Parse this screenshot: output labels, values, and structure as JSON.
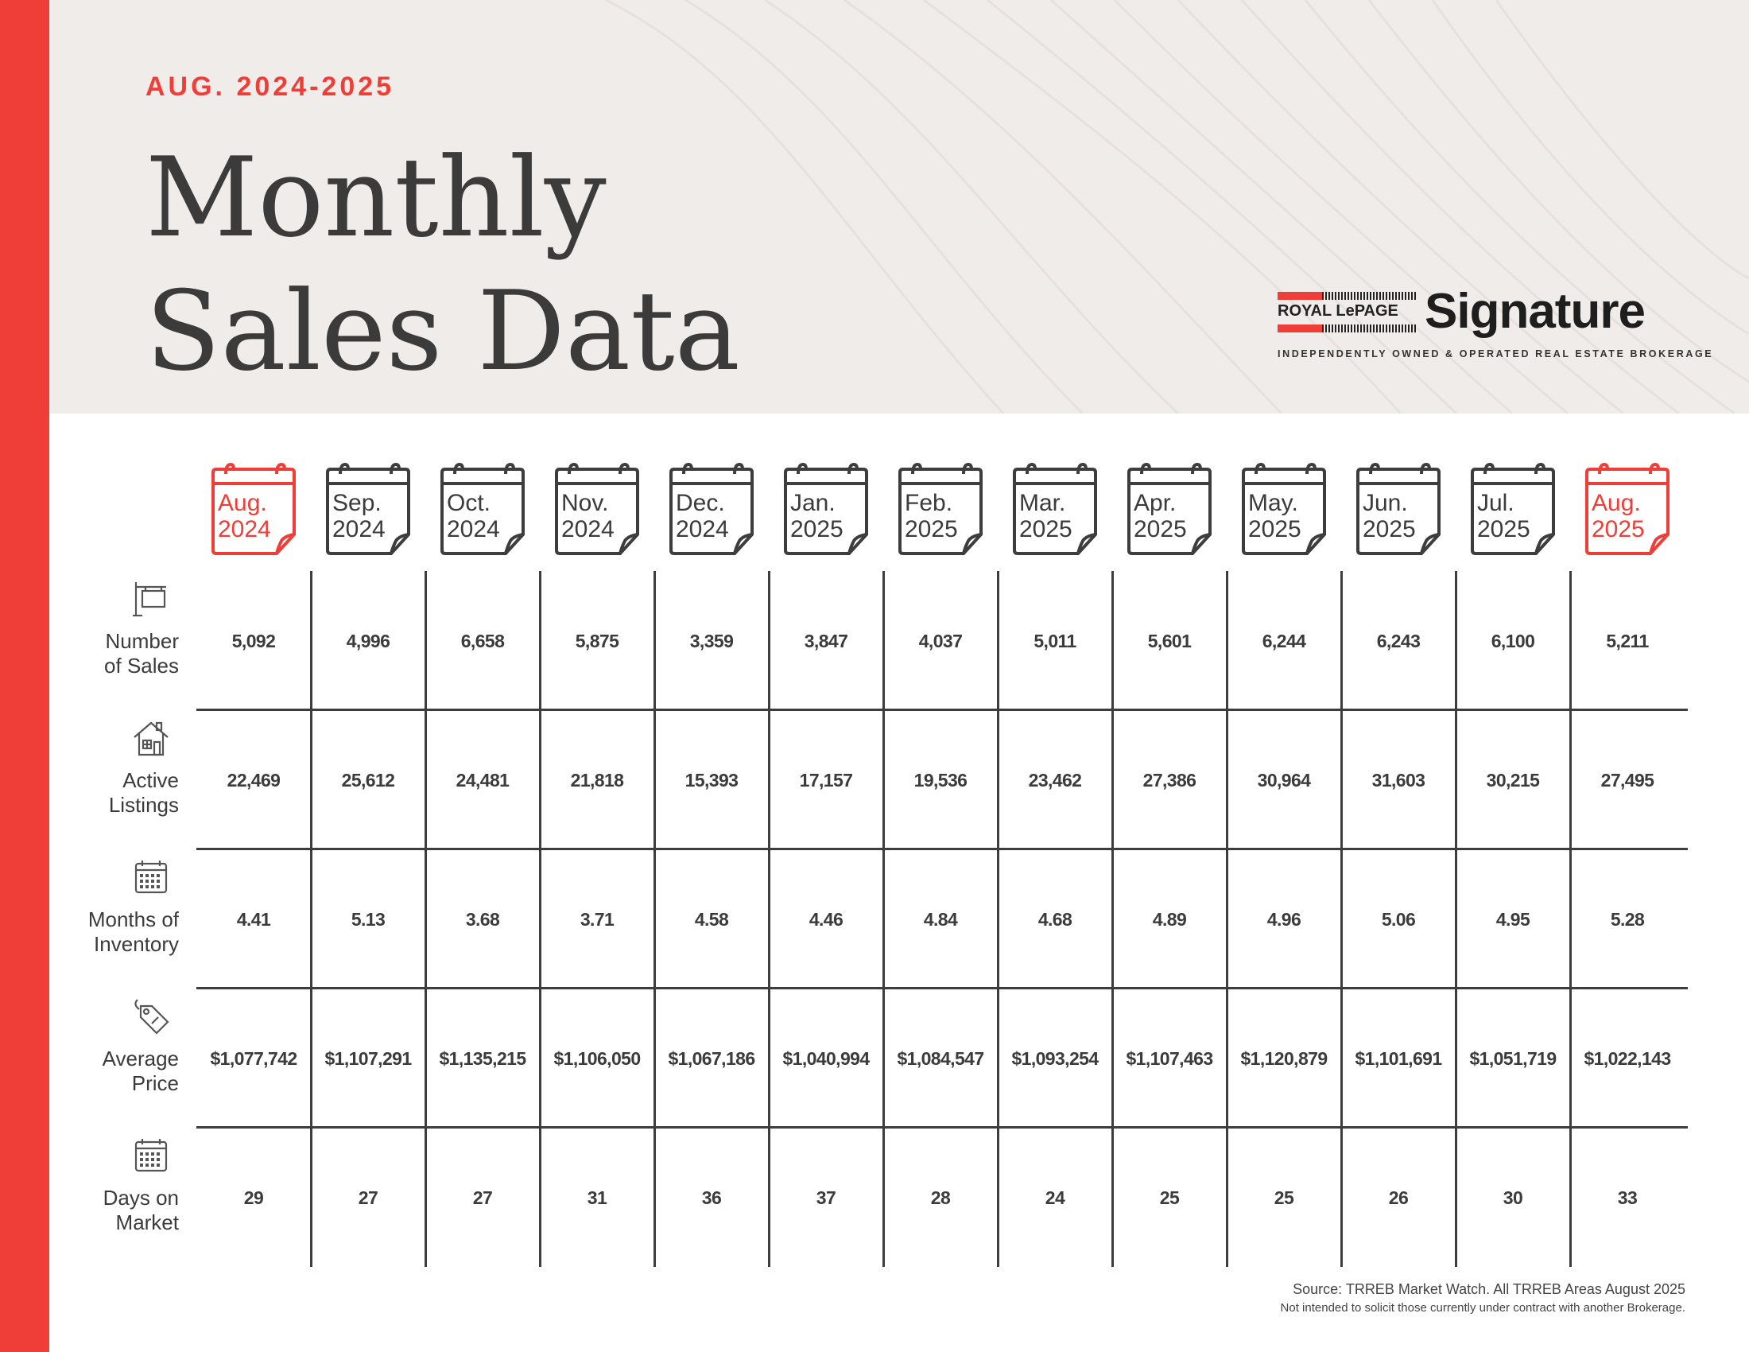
{
  "header": {
    "eyebrow": "AUG. 2024-2025",
    "title_line1": "Monthly",
    "title_line2": "Sales Data"
  },
  "logo": {
    "brand": "ROYAL LePAGE",
    "name": "Signature",
    "tagline": "INDEPENDENTLY OWNED & OPERATED REAL ESTATE BROKERAGE"
  },
  "colors": {
    "accent": "#ef3e37",
    "text": "#3b3b3b",
    "header_bg": "#f0ecea"
  },
  "months": [
    {
      "month": "Aug.",
      "year": "2024",
      "highlight": true
    },
    {
      "month": "Sep.",
      "year": "2024",
      "highlight": false
    },
    {
      "month": "Oct.",
      "year": "2024",
      "highlight": false
    },
    {
      "month": "Nov.",
      "year": "2024",
      "highlight": false
    },
    {
      "month": "Dec.",
      "year": "2024",
      "highlight": false
    },
    {
      "month": "Jan.",
      "year": "2025",
      "highlight": false
    },
    {
      "month": "Feb.",
      "year": "2025",
      "highlight": false
    },
    {
      "month": "Mar.",
      "year": "2025",
      "highlight": false
    },
    {
      "month": "Apr.",
      "year": "2025",
      "highlight": false
    },
    {
      "month": "May.",
      "year": "2025",
      "highlight": false
    },
    {
      "month": "Jun.",
      "year": "2025",
      "highlight": false
    },
    {
      "month": "Jul.",
      "year": "2025",
      "highlight": false
    },
    {
      "month": "Aug.",
      "year": "2025",
      "highlight": true
    }
  ],
  "rows": [
    {
      "line1": "Number",
      "line2": "of Sales",
      "icon": "sale-sign-icon",
      "values": [
        "5,092",
        "4,996",
        "6,658",
        "5,875",
        "3,359",
        "3,847",
        "4,037",
        "5,011",
        "5,601",
        "6,244",
        "6,243",
        "6,100",
        "5,211"
      ]
    },
    {
      "line1": "Active",
      "line2": "Listings",
      "icon": "house-icon",
      "values": [
        "22,469",
        "25,612",
        "24,481",
        "21,818",
        "15,393",
        "17,157",
        "19,536",
        "23,462",
        "27,386",
        "30,964",
        "31,603",
        "30,215",
        "27,495"
      ]
    },
    {
      "line1": "Months of",
      "line2": "Inventory",
      "icon": "calendar-icon",
      "values": [
        "4.41",
        "5.13",
        "3.68",
        "3.71",
        "4.58",
        "4.46",
        "4.84",
        "4.68",
        "4.89",
        "4.96",
        "5.06",
        "4.95",
        "5.28"
      ]
    },
    {
      "line1": "Average",
      "line2": "Price",
      "icon": "price-tag-icon",
      "values": [
        "$1,077,742",
        "$1,107,291",
        "$1,135,215",
        "$1,106,050",
        "$1,067,186",
        "$1,040,994",
        "$1,084,547",
        "$1,093,254",
        "$1,107,463",
        "$1,120,879",
        "$1,101,691",
        "$1,051,719",
        "$1,022,143"
      ]
    },
    {
      "line1": "Days on",
      "line2": "Market",
      "icon": "calendar-icon",
      "values": [
        "29",
        "27",
        "27",
        "31",
        "36",
        "37",
        "28",
        "24",
        "25",
        "25",
        "26",
        "30",
        "33"
      ]
    }
  ],
  "footer": {
    "source": "Source: TRREB Market Watch. All TRREB Areas August 2025",
    "note": "Not intended to solicit those currently under contract with another Brokerage."
  }
}
